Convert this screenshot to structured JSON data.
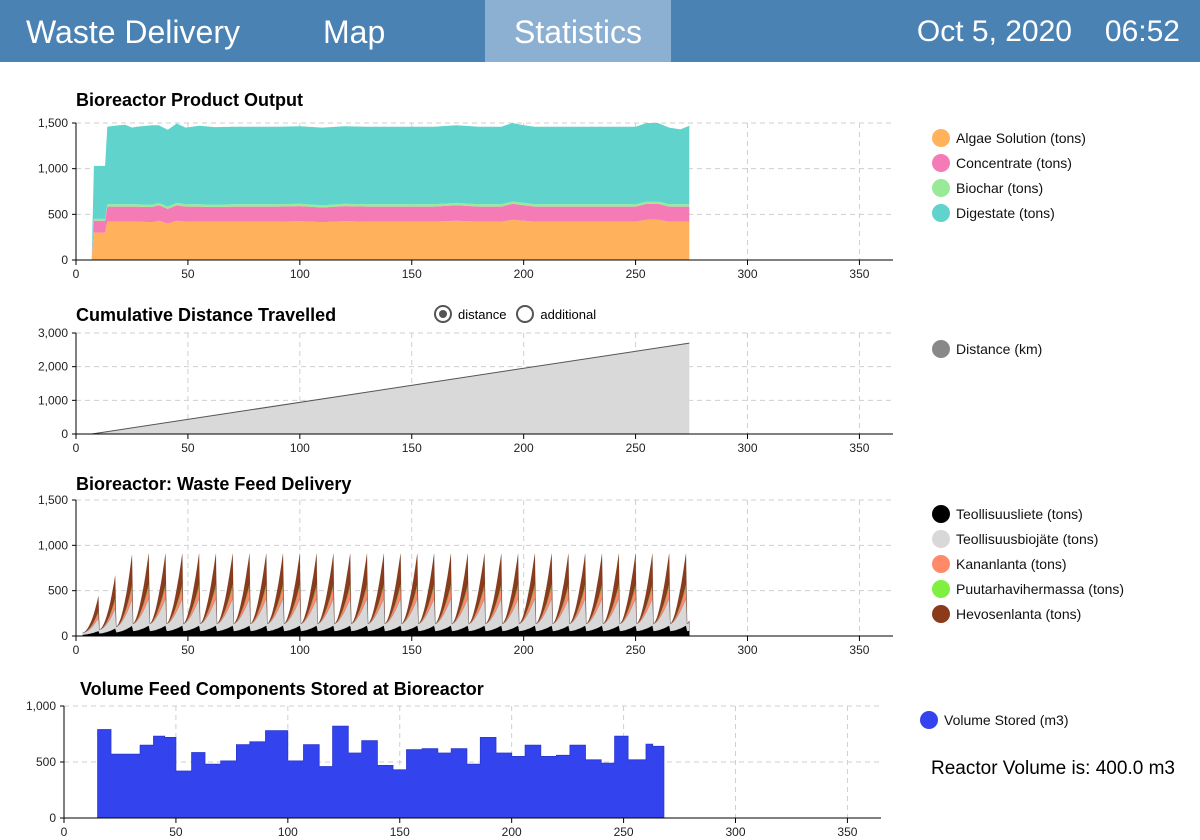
{
  "nav": {
    "home_label": "Waste Delivery",
    "map_label": "Map",
    "stats_label": "Statistics",
    "date": "Oct 5, 2020",
    "time": "06:52"
  },
  "colors": {
    "header_bg": "#4a82b4",
    "active_tab_bg": "#8cb0d2"
  },
  "charts": {
    "output_title": "Bioreactor  Product Output",
    "distance_title": "Cumulative Distance Travelled",
    "feed_title": "Bioreactor:  Waste Feed  Delivery",
    "volume_title": "Volume Feed Components Stored at Bioreactor"
  },
  "radio": {
    "distance_label": "distance",
    "additional_label": "additional",
    "selected": "distance"
  },
  "reactor_volume_text": "Reactor Volume is: 400.0 m3",
  "chart_data": [
    {
      "type": "area",
      "stacked": true,
      "title": "Bioreactor  Product Output",
      "xlim": [
        0,
        365
      ],
      "ylim": [
        0,
        1500
      ],
      "xticks": [
        0,
        50,
        100,
        150,
        200,
        250,
        300,
        350
      ],
      "yticks": [
        0,
        500,
        1000,
        1500
      ],
      "ytick_labels": [
        "0",
        "500",
        "1,000",
        "1,500"
      ],
      "grid": true,
      "legend_position": "right",
      "x": [
        7,
        8,
        13,
        14,
        17,
        22,
        25,
        27,
        34,
        37,
        41,
        45,
        49,
        55,
        62,
        70,
        80,
        90,
        100,
        110,
        120,
        130,
        140,
        150,
        160,
        170,
        180,
        190,
        195,
        200,
        205,
        210,
        220,
        230,
        240,
        250,
        255,
        260,
        265,
        270,
        274
      ],
      "series": [
        {
          "name": "Algae Solution (tons)",
          "color": "#ffb25b",
          "values": [
            0,
            300,
            300,
            420,
            420,
            420,
            420,
            420,
            415,
            430,
            400,
            430,
            420,
            420,
            420,
            420,
            420,
            420,
            425,
            415,
            425,
            420,
            420,
            420,
            420,
            430,
            420,
            420,
            440,
            430,
            420,
            420,
            420,
            420,
            420,
            420,
            440,
            440,
            420,
            420,
            420
          ]
        },
        {
          "name": "Concentrate (tons)",
          "color": "#f57bb6",
          "values": [
            0,
            130,
            130,
            165,
            165,
            165,
            165,
            165,
            165,
            170,
            160,
            170,
            165,
            165,
            160,
            165,
            165,
            165,
            165,
            160,
            165,
            165,
            165,
            165,
            165,
            170,
            165,
            165,
            175,
            170,
            165,
            165,
            165,
            165,
            165,
            165,
            175,
            175,
            165,
            165,
            165
          ]
        },
        {
          "name": "Biochar (tons)",
          "color": "#98e998",
          "values": [
            0,
            20,
            20,
            25,
            25,
            25,
            25,
            25,
            25,
            25,
            25,
            25,
            25,
            25,
            25,
            25,
            25,
            25,
            25,
            25,
            25,
            25,
            25,
            25,
            25,
            25,
            25,
            25,
            25,
            25,
            25,
            25,
            25,
            25,
            25,
            25,
            25,
            25,
            25,
            25,
            25
          ]
        },
        {
          "name": "Digestate (tons)",
          "color": "#5fd3cc",
          "values": [
            0,
            580,
            580,
            850,
            860,
            870,
            840,
            850,
            870,
            850,
            840,
            870,
            840,
            860,
            850,
            850,
            850,
            850,
            850,
            850,
            850,
            850,
            850,
            850,
            850,
            850,
            850,
            850,
            860,
            850,
            850,
            850,
            850,
            850,
            850,
            850,
            860,
            860,
            840,
            820,
            860
          ]
        }
      ]
    },
    {
      "type": "area",
      "title": "Cumulative Distance Travelled",
      "xlim": [
        0,
        365
      ],
      "ylim": [
        0,
        3000
      ],
      "xticks": [
        0,
        50,
        100,
        150,
        200,
        250,
        300,
        350
      ],
      "yticks": [
        0,
        1000,
        2000,
        3000
      ],
      "ytick_labels": [
        "0",
        "1,000",
        "2,000",
        "3,000"
      ],
      "grid": true,
      "legend_position": "right",
      "x": [
        7,
        274
      ],
      "series": [
        {
          "name": "Distance (km)",
          "color": "#888888",
          "values": [
            0,
            2700
          ]
        }
      ]
    },
    {
      "type": "area",
      "stacked": true,
      "title": "Bioreactor:  Waste Feed  Delivery",
      "xlim": [
        0,
        365
      ],
      "ylim": [
        0,
        1500
      ],
      "xticks": [
        0,
        50,
        100,
        150,
        200,
        250,
        300,
        350
      ],
      "yticks": [
        0,
        500,
        1000,
        1500
      ],
      "ytick_labels": [
        "0",
        "500",
        "1,000",
        "1,500"
      ],
      "grid": true,
      "legend_position": "right",
      "pattern": "sawtooth",
      "period_days": 7.5,
      "start_day": 3,
      "end_day": 274,
      "series": [
        {
          "name": "Teollisuusliete (tons)",
          "color": "#000000",
          "peak": 120
        },
        {
          "name": "Teollisuusbiojäte (tons)",
          "color": "#d8d8d8",
          "peak": 330
        },
        {
          "name": "Kananlanta (tons)",
          "color": "#ff8a6a",
          "peak": 150
        },
        {
          "name": "Puutarhavihermassa (tons)",
          "color": "#80f040",
          "peak": 25
        },
        {
          "name": "Hevosenlanta (tons)",
          "color": "#8b3a1a",
          "peak": 375
        }
      ]
    },
    {
      "type": "area",
      "step": true,
      "title": "Volume Feed Components Stored at Bioreactor",
      "xlim": [
        0,
        365
      ],
      "ylim": [
        0,
        1000
      ],
      "xticks": [
        0,
        50,
        100,
        150,
        200,
        250,
        300,
        350
      ],
      "yticks": [
        0,
        500,
        1000
      ],
      "ytick_labels": [
        "0",
        "500",
        "1,000"
      ],
      "grid": true,
      "legend_position": "right",
      "x": [
        14,
        15,
        21,
        34,
        40,
        45,
        50,
        57,
        63,
        70,
        77,
        83,
        90,
        100,
        107,
        114,
        120,
        127,
        133,
        140,
        147,
        153,
        160,
        167,
        173,
        180,
        186,
        193,
        200,
        206,
        213,
        220,
        226,
        233,
        240,
        246,
        252,
        260,
        263,
        268,
        274
      ],
      "series": [
        {
          "name": "Volume Stored (m3)",
          "color": "#3344ee",
          "values": [
            0,
            790,
            570,
            650,
            730,
            720,
            420,
            585,
            480,
            510,
            655,
            680,
            780,
            510,
            655,
            460,
            820,
            580,
            690,
            470,
            430,
            610,
            620,
            580,
            620,
            480,
            720,
            580,
            550,
            650,
            550,
            560,
            650,
            520,
            490,
            730,
            520,
            660,
            640,
            0,
            0
          ]
        }
      ]
    }
  ]
}
